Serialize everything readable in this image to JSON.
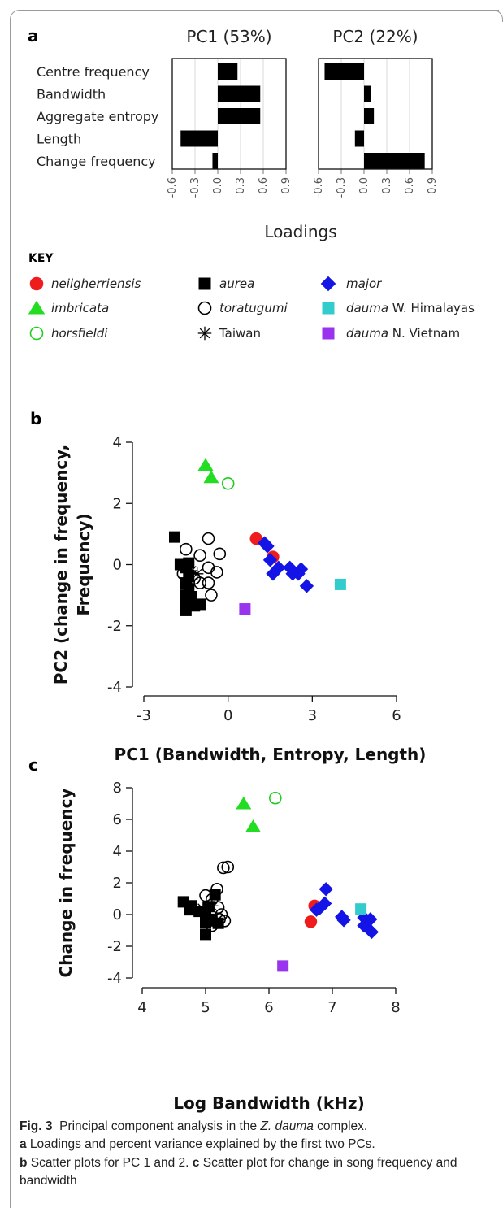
{
  "figure": {
    "panel_a_letter": "a",
    "panel_b_letter": "b",
    "panel_c_letter": "c",
    "key_heading": "KEY",
    "caption": {
      "fig_label": "Fig. 3",
      "text_1": "Principal component analysis in the ",
      "species_italic": "Z. dauma",
      "text_2": " complex.",
      "a_label": "a",
      "a_text": " Loadings and percent variance explained by the first two PCs.",
      "b_label": "b",
      "b_text": " Scatter plots for PC 1 and 2. ",
      "c_label": "c",
      "c_text": " Scatter plot for change in song frequency and bandwidth"
    }
  },
  "legend": [
    {
      "id": "neilgherriensis",
      "italic": "neilgherriensis",
      "plain": "",
      "marker": "circle-filled",
      "color": "#ee1c1c"
    },
    {
      "id": "aurea",
      "italic": "aurea",
      "plain": "",
      "marker": "square",
      "color": "#000000"
    },
    {
      "id": "major",
      "italic": "major",
      "plain": "",
      "marker": "diamond",
      "color": "#1414e6"
    },
    {
      "id": "imbricata",
      "italic": "imbricata",
      "plain": "",
      "marker": "triangle",
      "color": "#22dd22"
    },
    {
      "id": "toratugumi",
      "italic": "toratugumi",
      "plain": "",
      "marker": "circle-open",
      "color": "#000000"
    },
    {
      "id": "dauma_wh",
      "italic": "dauma",
      "plain": " W. Himalayas",
      "marker": "square",
      "color": "#33cccc"
    },
    {
      "id": "horsfieldi",
      "italic": "horsfieldi",
      "plain": "",
      "marker": "circle-open",
      "color": "#22cc22"
    },
    {
      "id": "taiwan",
      "italic": "",
      "plain": "Taiwan",
      "marker": "asterisk",
      "color": "#000000"
    },
    {
      "id": "dauma_nv",
      "italic": "dauma",
      "plain": " N. Vietnam",
      "marker": "square",
      "color": "#9933ee"
    }
  ],
  "chart_data": [
    {
      "panel": "a",
      "type": "bar",
      "orientation": "horizontal",
      "categories": [
        "Centre frequency",
        "Bandwidth",
        "Aggregate entropy",
        "Length",
        "Change frequency"
      ],
      "series": [
        {
          "name": "PC1 (53%)",
          "values": [
            0.26,
            0.56,
            0.56,
            -0.49,
            -0.07
          ]
        },
        {
          "name": "PC2 (22%)",
          "values": [
            -0.52,
            0.09,
            0.13,
            -0.12,
            0.8
          ]
        }
      ],
      "xlim": [
        -0.6,
        0.9
      ],
      "xticks": [
        "-0.6",
        "-0.3",
        "0.0",
        "0.3",
        "0.6",
        "0.9"
      ],
      "xlabel": "Loadings",
      "grid": true
    },
    {
      "panel": "b",
      "type": "scatter",
      "xlabel": "PC1 (Bandwidth, Entropy, Length)",
      "ylabel": "PC2 (change in frequency, Frequency)",
      "xlim": [
        -3,
        6
      ],
      "ylim": [
        -4,
        4
      ],
      "xticks": [
        "-3",
        "0",
        "3",
        "6"
      ],
      "yticks": [
        "-4",
        "-2",
        "0",
        "2",
        "4"
      ],
      "series": [
        {
          "id": "imbricata",
          "points": [
            [
              -0.8,
              3.25
            ],
            [
              -0.6,
              2.85
            ]
          ]
        },
        {
          "id": "horsfieldi",
          "points": [
            [
              0.0,
              2.65
            ]
          ]
        },
        {
          "id": "neilgherriensis",
          "points": [
            [
              1.0,
              0.85
            ],
            [
              1.6,
              0.25
            ]
          ]
        },
        {
          "id": "major",
          "points": [
            [
              1.3,
              0.7
            ],
            [
              1.4,
              0.6
            ],
            [
              1.5,
              0.15
            ],
            [
              1.6,
              -0.3
            ],
            [
              1.8,
              -0.1
            ],
            [
              2.2,
              -0.1
            ],
            [
              2.3,
              -0.3
            ],
            [
              2.5,
              -0.3
            ],
            [
              2.6,
              -0.15
            ],
            [
              2.8,
              -0.7
            ]
          ]
        },
        {
          "id": "dauma_wh",
          "points": [
            [
              4.0,
              -0.65
            ]
          ]
        },
        {
          "id": "dauma_nv",
          "points": [
            [
              0.6,
              -1.45
            ]
          ]
        },
        {
          "id": "aurea",
          "points": [
            [
              -1.9,
              0.9
            ],
            [
              -1.7,
              0.0
            ],
            [
              -1.5,
              -0.1
            ],
            [
              -1.4,
              -0.4
            ],
            [
              -1.5,
              -0.6
            ],
            [
              -1.4,
              -0.8
            ],
            [
              -1.5,
              -1.0
            ],
            [
              -1.3,
              -1.05
            ],
            [
              -1.5,
              -1.2
            ],
            [
              -1.2,
              -1.35
            ],
            [
              -1.5,
              -1.5
            ],
            [
              -1.0,
              -1.3
            ],
            [
              -1.4,
              0.05
            ]
          ]
        },
        {
          "id": "toratugumi",
          "points": [
            [
              -1.5,
              0.5
            ],
            [
              -0.7,
              0.85
            ],
            [
              -1.0,
              0.3
            ],
            [
              -0.3,
              0.35
            ],
            [
              -1.6,
              -0.3
            ],
            [
              -0.7,
              -0.1
            ],
            [
              -0.4,
              -0.25
            ],
            [
              -0.7,
              -0.6
            ],
            [
              -1.2,
              -0.45
            ],
            [
              -0.6,
              -1.0
            ],
            [
              -1.0,
              -0.6
            ]
          ]
        },
        {
          "id": "taiwan",
          "points": [
            [
              -1.3,
              -0.2
            ],
            [
              -1.1,
              -0.3
            ]
          ]
        }
      ]
    },
    {
      "panel": "c",
      "type": "scatter",
      "xlabel": "Log Bandwidth (kHz)",
      "ylabel": "Change in frequency",
      "xlim": [
        4,
        8
      ],
      "ylim": [
        -4,
        8
      ],
      "xticks": [
        "4",
        "5",
        "6",
        "7",
        "8"
      ],
      "yticks": [
        "-4",
        "-2",
        "0",
        "2",
        "4",
        "6",
        "8"
      ],
      "series": [
        {
          "id": "imbricata",
          "points": [
            [
              5.6,
              7.0
            ],
            [
              5.75,
              5.55
            ]
          ]
        },
        {
          "id": "horsfieldi",
          "points": [
            [
              6.1,
              7.35
            ]
          ]
        },
        {
          "id": "neilgherriensis",
          "points": [
            [
              6.72,
              0.55
            ],
            [
              6.66,
              -0.45
            ]
          ]
        },
        {
          "id": "major",
          "points": [
            [
              6.9,
              1.6
            ],
            [
              6.88,
              0.7
            ],
            [
              6.8,
              0.4
            ],
            [
              6.75,
              0.3
            ],
            [
              7.15,
              -0.15
            ],
            [
              7.18,
              -0.35
            ],
            [
              7.5,
              -0.2
            ],
            [
              7.55,
              -0.5
            ],
            [
              7.5,
              -0.7
            ],
            [
              7.6,
              -0.3
            ],
            [
              7.62,
              -1.1
            ]
          ]
        },
        {
          "id": "dauma_wh",
          "points": [
            [
              7.45,
              0.35
            ]
          ]
        },
        {
          "id": "dauma_nv",
          "points": [
            [
              6.22,
              -3.25
            ]
          ]
        },
        {
          "id": "aurea",
          "points": [
            [
              4.65,
              0.8
            ],
            [
              4.78,
              0.55
            ],
            [
              4.75,
              0.3
            ],
            [
              4.9,
              0.2
            ],
            [
              5.0,
              0.0
            ],
            [
              5.05,
              0.5
            ],
            [
              5.15,
              1.25
            ],
            [
              5.05,
              -0.3
            ],
            [
              5.0,
              -0.5
            ],
            [
              5.1,
              -0.4
            ],
            [
              5.2,
              -0.55
            ],
            [
              5.0,
              -1.25
            ]
          ]
        },
        {
          "id": "toratugumi",
          "points": [
            [
              5.28,
              2.95
            ],
            [
              5.35,
              3.0
            ],
            [
              5.18,
              1.6
            ],
            [
              5.0,
              1.2
            ],
            [
              5.1,
              0.95
            ],
            [
              5.25,
              0.0
            ],
            [
              5.3,
              -0.4
            ],
            [
              5.1,
              -0.7
            ],
            [
              5.2,
              0.45
            ],
            [
              5.22,
              -0.3
            ]
          ]
        },
        {
          "id": "taiwan",
          "points": [
            [
              4.95,
              0.4
            ],
            [
              5.1,
              0.55
            ]
          ]
        }
      ]
    }
  ]
}
